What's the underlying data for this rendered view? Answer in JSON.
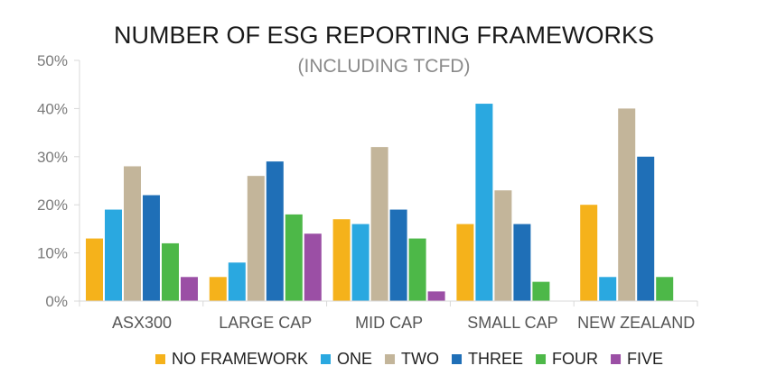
{
  "chart_data": {
    "type": "bar",
    "title": "NUMBER OF ESG REPORTING FRAMEWORKS",
    "subtitle": "(INCLUDING TCFD)",
    "xlabel": "",
    "ylabel": "",
    "ylim": [
      0,
      50
    ],
    "yticks": [
      "0%",
      "10%",
      "20%",
      "30%",
      "40%",
      "50%"
    ],
    "grid": false,
    "legend_position": "bottom",
    "categories": [
      "ASX300",
      "LARGE CAP",
      "MID CAP",
      "SMALL CAP",
      "NEW ZEALAND"
    ],
    "series": [
      {
        "name": "NO FRAMEWORK",
        "color": "#F5B21B",
        "values": [
          13,
          5,
          17,
          16,
          20
        ]
      },
      {
        "name": "ONE",
        "color": "#2AA8E0",
        "values": [
          19,
          8,
          16,
          41,
          5
        ]
      },
      {
        "name": "TWO",
        "color": "#C3B59A",
        "values": [
          28,
          26,
          32,
          23,
          40
        ]
      },
      {
        "name": "THREE",
        "color": "#1F6FB7",
        "values": [
          22,
          29,
          19,
          16,
          30
        ]
      },
      {
        "name": "FOUR",
        "color": "#4DB848",
        "values": [
          12,
          18,
          13,
          4,
          5
        ]
      },
      {
        "name": "FIVE",
        "color": "#9B4FA5",
        "values": [
          5,
          14,
          2,
          null,
          null
        ]
      }
    ]
  }
}
